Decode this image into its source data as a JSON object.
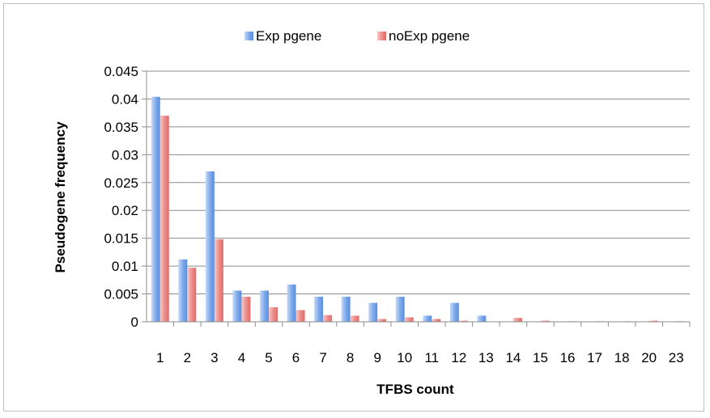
{
  "chart_data": {
    "type": "bar",
    "title": "",
    "xlabel": "TFBS count",
    "ylabel": "Pseudogene frequency",
    "categories": [
      "1",
      "2",
      "3",
      "4",
      "5",
      "6",
      "7",
      "8",
      "9",
      "10",
      "11",
      "12",
      "13",
      "14",
      "15",
      "16",
      "17",
      "18",
      "20",
      "23"
    ],
    "series": [
      {
        "name": "Exp pgene",
        "color": "#6fa0e6",
        "values": [
          0.0404,
          0.0112,
          0.027,
          0.0056,
          0.0056,
          0.0067,
          0.0045,
          0.0045,
          0.0034,
          0.0045,
          0.0011,
          0.0034,
          0.0011,
          0,
          0,
          0,
          0,
          0,
          0,
          0
        ]
      },
      {
        "name": "noExp pgene",
        "color": "#e87a78",
        "values": [
          0.037,
          0.0097,
          0.0148,
          0.0045,
          0.0026,
          0.0021,
          0.0012,
          0.0011,
          0.0005,
          0.0008,
          0.0005,
          0.0002,
          0,
          0.0007,
          0.0002,
          0.0001,
          0.0001,
          0.0001,
          0.0002,
          0.0001
        ]
      }
    ],
    "yticks": [
      "0",
      "0.005",
      "0.01",
      "0.015",
      "0.02",
      "0.025",
      "0.03",
      "0.035",
      "0.04",
      "0.045"
    ],
    "ylim": [
      0,
      0.045
    ],
    "grid": true,
    "legend_position": "top"
  }
}
